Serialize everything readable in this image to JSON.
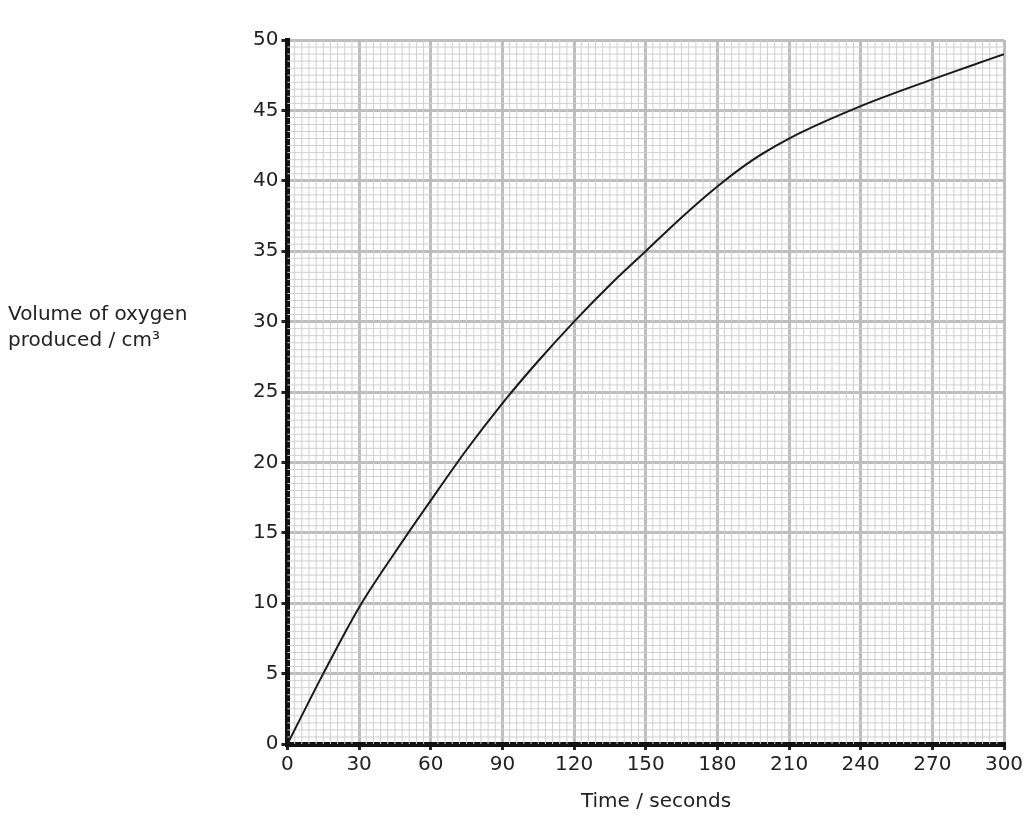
{
  "chart_data": {
    "type": "line",
    "xlabel": "Time / seconds",
    "ylabel": "Volume of oxygen produced / cm³",
    "x": [
      0,
      15,
      30,
      45,
      60,
      75,
      90,
      105,
      120,
      135,
      150,
      165,
      180,
      195,
      210,
      240,
      270,
      285,
      300
    ],
    "series": [
      {
        "color": "#1a1a1a",
        "values": [
          0,
          5,
          9.7,
          13.6,
          17.3,
          20.9,
          24.2,
          27.2,
          30,
          32.6,
          35,
          37.4,
          39.6,
          41.5,
          43,
          45.3,
          47.2,
          48.1,
          49
        ]
      }
    ],
    "xlim": [
      0,
      300
    ],
    "xticks": [
      0,
      30,
      60,
      90,
      120,
      150,
      180,
      210,
      240,
      270,
      300
    ],
    "ylim": [
      0,
      50
    ],
    "yticks": [
      0,
      5,
      10,
      15,
      20,
      25,
      30,
      35,
      40,
      45,
      50
    ],
    "grid": true,
    "legend": false,
    "marker": "none",
    "line_style": "solid"
  }
}
